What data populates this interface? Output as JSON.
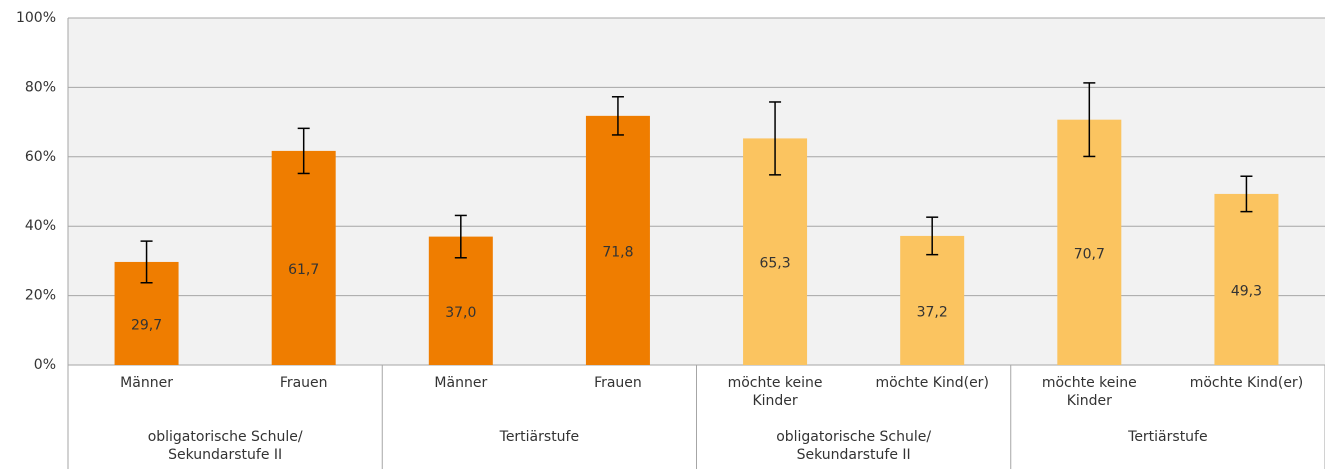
{
  "chart_data": {
    "type": "bar",
    "categories": [
      "Männer",
      "Frauen",
      "Männer",
      "Frauen",
      "möchte keine Kinder",
      "möchte Kind(er)",
      "möchte keine Kinder",
      "möchte Kind(er)"
    ],
    "groups": [
      "obligatorische Schule/ Sekundarstufe II",
      "Tertiärstufe",
      "obligatorische Schule/ Sekundarstufe II",
      "Tertiärstufe"
    ],
    "values": [
      29.7,
      61.7,
      37.0,
      71.8,
      65.3,
      37.2,
      70.7,
      49.3
    ],
    "value_labels": [
      "29,7",
      "61,7",
      "37,0",
      "71,8",
      "65,3",
      "37,2",
      "70,7",
      "49,3"
    ],
    "errors": [
      6.0,
      6.5,
      6.1,
      5.5,
      10.5,
      5.4,
      10.6,
      5.1
    ],
    "colors": [
      "#ef7d00",
      "#ef7d00",
      "#ef7d00",
      "#ef7d00",
      "#fbc460",
      "#fbc460",
      "#fbc460",
      "#fbc460"
    ],
    "ylim": [
      0,
      100
    ],
    "yticks": [
      {
        "value": 0,
        "label": "0%"
      },
      {
        "value": 20,
        "label": "20%"
      },
      {
        "value": 40,
        "label": "40%"
      },
      {
        "value": 60,
        "label": "60%"
      },
      {
        "value": 80,
        "label": "80%"
      },
      {
        "value": 100,
        "label": "100%"
      }
    ],
    "grid": true
  }
}
